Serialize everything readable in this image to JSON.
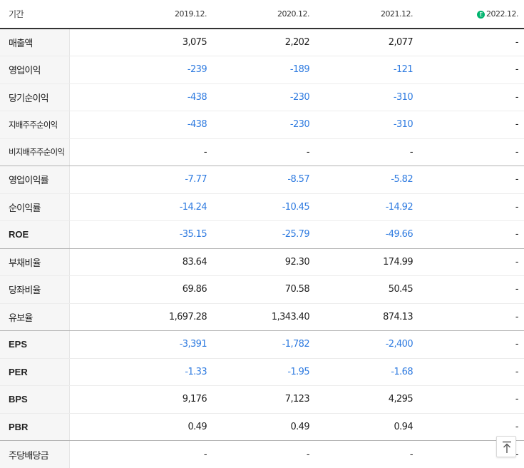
{
  "header": {
    "period_label": "기간",
    "years": [
      "2019.12.",
      "2020.12.",
      "2021.12.",
      "2022.12."
    ],
    "estimate_mark": "E"
  },
  "rows": [
    {
      "label": "매출액",
      "values": [
        "3,075",
        "2,202",
        "2,077",
        "-"
      ]
    },
    {
      "label": "영업이익",
      "values": [
        "-239",
        "-189",
        "-121",
        "-"
      ]
    },
    {
      "label": "당기순이익",
      "values": [
        "-438",
        "-230",
        "-310",
        "-"
      ]
    },
    {
      "label": "지배주주순이익",
      "values": [
        "-438",
        "-230",
        "-310",
        "-"
      ]
    },
    {
      "label": "비지배주주순이익",
      "values": [
        "-",
        "-",
        "-",
        "-"
      ]
    },
    {
      "label": "영업이익률",
      "values": [
        "-7.77",
        "-8.57",
        "-5.82",
        "-"
      ]
    },
    {
      "label": "순이익률",
      "values": [
        "-14.24",
        "-10.45",
        "-14.92",
        "-"
      ]
    },
    {
      "label": "ROE",
      "values": [
        "-35.15",
        "-25.79",
        "-49.66",
        "-"
      ]
    },
    {
      "label": "부채비율",
      "values": [
        "83.64",
        "92.30",
        "174.99",
        "-"
      ]
    },
    {
      "label": "당좌비율",
      "values": [
        "69.86",
        "70.58",
        "50.45",
        "-"
      ]
    },
    {
      "label": "유보율",
      "values": [
        "1,697.28",
        "1,343.40",
        "874.13",
        "-"
      ]
    },
    {
      "label": "EPS",
      "values": [
        "-3,391",
        "-1,782",
        "-2,400",
        "-"
      ]
    },
    {
      "label": "PER",
      "values": [
        "-1.33",
        "-1.95",
        "-1.68",
        "-"
      ]
    },
    {
      "label": "BPS",
      "values": [
        "9,176",
        "7,123",
        "4,295",
        "-"
      ]
    },
    {
      "label": "PBR",
      "values": [
        "0.49",
        "0.49",
        "0.94",
        "-"
      ]
    },
    {
      "label": "주당배당금",
      "values": [
        "-",
        "-",
        "-",
        "-"
      ]
    }
  ],
  "top_button": {
    "icon": "arrow-up-to-top-icon"
  },
  "colors": {
    "negative_text": "#2f7be0",
    "estimate_badge": "#00b46e",
    "label_background": "#f6f6f6"
  }
}
